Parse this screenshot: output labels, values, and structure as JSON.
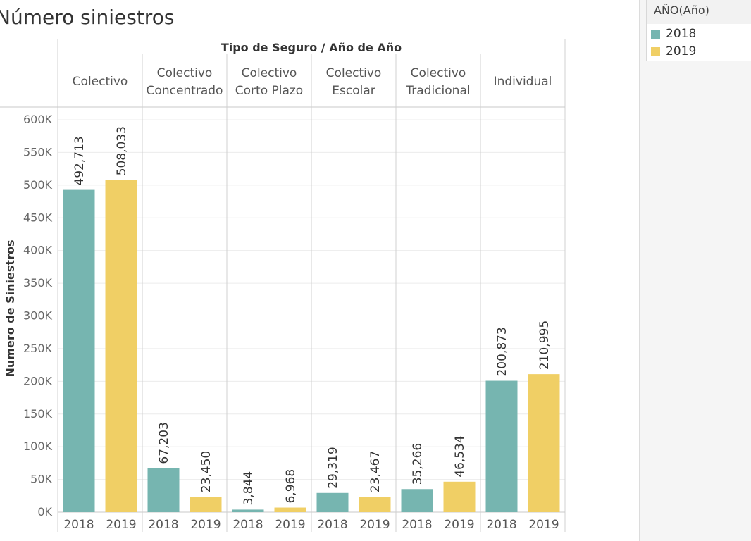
{
  "title": "Número siniestros",
  "legend": {
    "title": "AÑO(Año)",
    "items": [
      {
        "label": "2018",
        "color": "#76b5b0"
      },
      {
        "label": "2019",
        "color": "#f0cf65"
      }
    ]
  },
  "chart_data": {
    "type": "bar",
    "column_header": "Tipo de Seguro / Año de Año",
    "ylabel": "Numero de Siniestros",
    "ylim": [
      0,
      600000
    ],
    "yticks": [
      {
        "value": 0,
        "label": "0K"
      },
      {
        "value": 50000,
        "label": "50K"
      },
      {
        "value": 100000,
        "label": "100K"
      },
      {
        "value": 150000,
        "label": "150K"
      },
      {
        "value": 200000,
        "label": "200K"
      },
      {
        "value": 250000,
        "label": "250K"
      },
      {
        "value": 300000,
        "label": "300K"
      },
      {
        "value": 350000,
        "label": "350K"
      },
      {
        "value": 400000,
        "label": "400K"
      },
      {
        "value": 450000,
        "label": "450K"
      },
      {
        "value": 500000,
        "label": "500K"
      },
      {
        "value": 550000,
        "label": "550K"
      },
      {
        "value": 600000,
        "label": "600K"
      }
    ],
    "groups": [
      {
        "label": [
          "Colectivo"
        ],
        "bars": [
          {
            "year": "2018",
            "value": 492713,
            "label": "492,713"
          },
          {
            "year": "2019",
            "value": 508033,
            "label": "508,033"
          }
        ]
      },
      {
        "label": [
          "Colectivo",
          "Concentrado"
        ],
        "bars": [
          {
            "year": "2018",
            "value": 67203,
            "label": "67,203"
          },
          {
            "year": "2019",
            "value": 23450,
            "label": "23,450"
          }
        ]
      },
      {
        "label": [
          "Colectivo",
          "Corto Plazo"
        ],
        "bars": [
          {
            "year": "2018",
            "value": 3844,
            "label": "3,844"
          },
          {
            "year": "2019",
            "value": 6968,
            "label": "6,968"
          }
        ]
      },
      {
        "label": [
          "Colectivo",
          "Escolar"
        ],
        "bars": [
          {
            "year": "2018",
            "value": 29319,
            "label": "29,319"
          },
          {
            "year": "2019",
            "value": 23467,
            "label": "23,467"
          }
        ]
      },
      {
        "label": [
          "Colectivo",
          "Tradicional"
        ],
        "bars": [
          {
            "year": "2018",
            "value": 35266,
            "label": "35,266"
          },
          {
            "year": "2019",
            "value": 46534,
            "label": "46,534"
          }
        ]
      },
      {
        "label": [
          "Individual"
        ],
        "bars": [
          {
            "year": "2018",
            "value": 200873,
            "label": "200,873"
          },
          {
            "year": "2019",
            "value": 210995,
            "label": "210,995"
          }
        ]
      }
    ]
  }
}
